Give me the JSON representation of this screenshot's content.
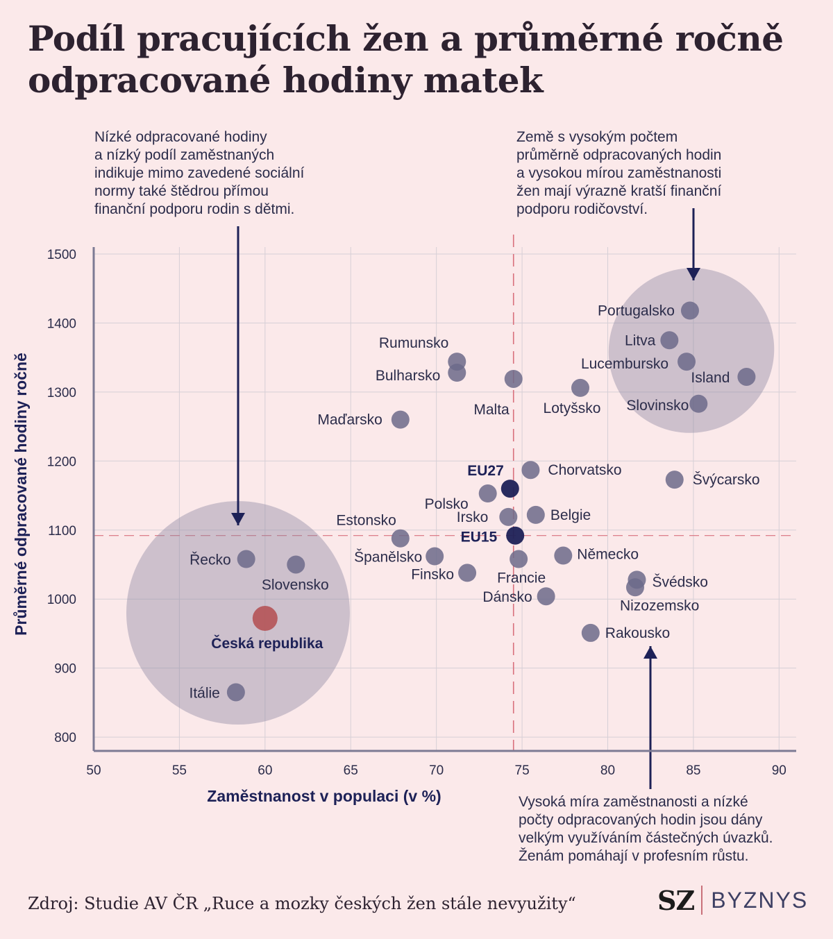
{
  "title": "Podíl pracujících žen a průměrné ročně odpracované hodiny matek",
  "notes": {
    "left": "Nízké odpracované hodiny\na nízký podíl zaměstnaných\nindikuje mimo zavedené sociální\nnormy také štědrou přímou\nfinanční podporu rodin s dětmi.",
    "right": "Země s vysokým počtem\nprůměrně odpracovaných hodin\na vysokou mírou zaměstnanosti\nžen mají výrazně kratší finanční\npodporu rodičovství.",
    "bottom": "Vysoká míra zaměstnanosti a nízké\npočty odpracovaných hodin jsou dány\nvelkým využíváním částečných úvazků.\nŽenám pomáhají v profesním růstu."
  },
  "source": "Zdroj: Studie AV ČR „Ruce a mozky českých žen stále nevyužity“",
  "brand": {
    "sz": "SZ",
    "byznys": "BYZNYS"
  },
  "colors": {
    "background": "#fbe9ea",
    "point": "#6c6a8a",
    "eu_point": "#1d2157",
    "czech_point": "#b5585c",
    "cluster": "#8c87a2",
    "reference_line": "#d9707c",
    "axis": "#7c7a94",
    "grid": "#d6cfd6",
    "arrow": "#1d2157"
  },
  "chart_data": {
    "type": "scatter",
    "xlabel": "Zaměstnanost v populaci (v %)",
    "ylabel": "Průměrné odpracované hodiny ročně",
    "xlim": [
      50,
      91
    ],
    "ylim": [
      780,
      1510
    ],
    "xticks": [
      50,
      55,
      60,
      65,
      70,
      75,
      80,
      85,
      90
    ],
    "yticks": [
      800,
      900,
      1000,
      1100,
      1200,
      1300,
      1400,
      1500
    ],
    "grid": true,
    "reference_lines": {
      "x": 74.5,
      "y": 1092
    },
    "points": [
      {
        "name": "Portugalsko",
        "x": 84.8,
        "y": 1418
      },
      {
        "name": "Litva",
        "x": 83.6,
        "y": 1375
      },
      {
        "name": "Lucembursko",
        "x": 84.6,
        "y": 1344
      },
      {
        "name": "Island",
        "x": 88.1,
        "y": 1322
      },
      {
        "name": "Slovinsko",
        "x": 85.3,
        "y": 1283
      },
      {
        "name": "Lotyšsko",
        "x": 78.4,
        "y": 1306
      },
      {
        "name": "Malta",
        "x": 74.5,
        "y": 1319
      },
      {
        "name": "Rumunsko",
        "x": 71.2,
        "y": 1344
      },
      {
        "name": "Bulharsko",
        "x": 71.2,
        "y": 1328
      },
      {
        "name": "Maďarsko",
        "x": 67.9,
        "y": 1260
      },
      {
        "name": "Chorvatsko",
        "x": 75.5,
        "y": 1187
      },
      {
        "name": "Švýcarsko",
        "x": 83.9,
        "y": 1173
      },
      {
        "name": "Polsko",
        "x": 73.0,
        "y": 1153
      },
      {
        "name": "Irsko",
        "x": 74.2,
        "y": 1119
      },
      {
        "name": "Belgie",
        "x": 75.8,
        "y": 1122
      },
      {
        "name": "Estonsko",
        "x": 67.9,
        "y": 1088
      },
      {
        "name": "Španělsko",
        "x": 69.9,
        "y": 1062
      },
      {
        "name": "Finsko",
        "x": 71.8,
        "y": 1038
      },
      {
        "name": "Francie",
        "x": 74.8,
        "y": 1058
      },
      {
        "name": "Dánsko",
        "x": 76.4,
        "y": 1004
      },
      {
        "name": "Německo",
        "x": 77.4,
        "y": 1063
      },
      {
        "name": "Švédsko",
        "x": 81.7,
        "y": 1028
      },
      {
        "name": "Nizozemsko",
        "x": 81.6,
        "y": 1017
      },
      {
        "name": "Rakousko",
        "x": 79.0,
        "y": 951
      },
      {
        "name": "Řecko",
        "x": 58.9,
        "y": 1058
      },
      {
        "name": "Slovensko",
        "x": 61.8,
        "y": 1050
      },
      {
        "name": "Itálie",
        "x": 58.3,
        "y": 865
      },
      {
        "name": "EU27",
        "x": 74.3,
        "y": 1160,
        "group": "eu"
      },
      {
        "name": "EU15",
        "x": 74.6,
        "y": 1092,
        "group": "eu"
      },
      {
        "name": "Česká republika",
        "x": 60.0,
        "y": 972,
        "group": "cz"
      }
    ]
  }
}
